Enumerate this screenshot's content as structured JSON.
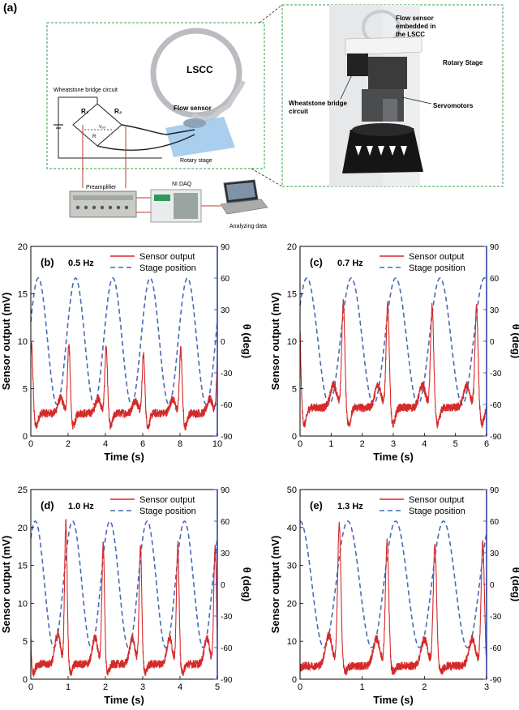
{
  "panel_a": {
    "label": "(a)",
    "wheatstone_title": "Wheatstone bridge circuit",
    "r1": "R₁",
    "r2": "R₂",
    "r": "R",
    "vout": "Vₒᵤₜ",
    "lscc": "LSCC",
    "flow_sensor": "Flow sensor",
    "rotary_stage": "Rotary stage",
    "preamplifier": "Preamplifier",
    "ni_daq": "NI DAQ",
    "analyzing": "Analyzing data",
    "photo_flow_sensor": [
      "Flow sensor",
      "embedded in",
      "the LSCC"
    ],
    "photo_rotary_stage": "Rotary Stage",
    "photo_wheatstone": [
      "Wheatstone bridge",
      "circuit"
    ],
    "photo_servomotors": "Servomotors"
  },
  "colors": {
    "sensor": "#d42a2a",
    "stage": "#4a6ab4",
    "right_axis": "#2f45a8",
    "outline": "#2fa34a"
  },
  "chart_data": [
    {
      "type": "line",
      "label": "(b)",
      "freq": "0.5 Hz",
      "xlabel": "Time (s)",
      "ylabel": "Sensor output (mV)",
      "y2label": "θ (deg)",
      "xlim": [
        0,
        10
      ],
      "ylim": [
        0,
        20
      ],
      "y2lim": [
        -90,
        90
      ],
      "xticks": [
        "0",
        "2",
        "4",
        "6",
        "8",
        "10"
      ],
      "yticks": [
        "0",
        "5",
        "10",
        "15",
        "20"
      ],
      "y2ticks": [
        "-90",
        "-60",
        "-30",
        "0",
        "30",
        "60",
        "90"
      ],
      "series": [
        {
          "name": "Sensor output"
        },
        {
          "name": "Stage position"
        }
      ],
      "stage_amplitude_deg": 60,
      "stage_phase_s": 0.4,
      "sensor_peaks_mv": [
        9.7,
        9.5,
        8.6,
        9.2,
        9.3
      ],
      "sensor_min_mv": 1.0,
      "sensor_base_mv": 2.4
    },
    {
      "type": "line",
      "label": "(c)",
      "freq": "0.7 Hz",
      "xlabel": "Time (s)",
      "ylabel": "Sensor output (mV)",
      "y2label": "θ (deg)",
      "xlim": [
        0,
        6
      ],
      "ylim": [
        0,
        20
      ],
      "y2lim": [
        -90,
        90
      ],
      "xticks": [
        "0",
        "1",
        "2",
        "3",
        "4",
        "5",
        "6"
      ],
      "yticks": [
        "0",
        "5",
        "10",
        "15",
        "20"
      ],
      "y2ticks": [
        "-90",
        "-60",
        "-30",
        "0",
        "30",
        "60",
        "90"
      ],
      "series": [
        {
          "name": "Sensor output"
        },
        {
          "name": "Stage position"
        }
      ],
      "stage_amplitude_deg": 60,
      "stage_phase_s": 0.22,
      "sensor_peaks_mv": [
        14.2,
        13.9,
        13.7,
        13.6,
        13.5,
        14.3
      ],
      "sensor_min_mv": 1.2,
      "sensor_base_mv": 3.0
    },
    {
      "type": "line",
      "label": "(d)",
      "freq": "1.0 Hz",
      "xlabel": "Time (s)",
      "ylabel": "Sensor output (mV)",
      "y2label": "θ (deg)",
      "xlim": [
        0,
        5
      ],
      "ylim": [
        0,
        25
      ],
      "y2lim": [
        -90,
        90
      ],
      "xticks": [
        "0",
        "1",
        "2",
        "3",
        "4",
        "5"
      ],
      "yticks": [
        "0",
        "5",
        "10",
        "15",
        "20",
        "25"
      ],
      "y2ticks": [
        "-90",
        "-60",
        "-30",
        "0",
        "30",
        "60",
        "90"
      ],
      "series": [
        {
          "name": "Sensor output"
        },
        {
          "name": "Stage position"
        }
      ],
      "stage_amplitude_deg": 60,
      "stage_phase_s": 0.12,
      "sensor_peaks_mv": [
        20.8,
        18.0,
        17.5,
        17.8,
        17.6,
        13.0
      ],
      "sensor_min_mv": 0.8,
      "sensor_base_mv": 2.0
    },
    {
      "type": "line",
      "label": "(e)",
      "freq": "1.3 Hz",
      "xlabel": "Time (s)",
      "ylabel": "Sensor output (mV)",
      "y2label": "θ (deg)",
      "xlim": [
        0,
        3
      ],
      "ylim": [
        0,
        50
      ],
      "y2lim": [
        -90,
        90
      ],
      "xticks": [
        "0",
        "1",
        "2",
        "3"
      ],
      "yticks": [
        "0",
        "10",
        "20",
        "30",
        "40",
        "50"
      ],
      "y2ticks": [
        "-90",
        "-60",
        "-30",
        "0",
        "30",
        "60",
        "90"
      ],
      "series": [
        {
          "name": "Sensor output"
        },
        {
          "name": "Stage position"
        }
      ],
      "stage_amplitude_deg": 60,
      "stage_phase_s": 0.0,
      "sensor_peaks_mv": [
        40.5,
        36.0,
        35.5,
        36.0
      ],
      "sensor_min_mv": 2.0,
      "sensor_base_mv": 3.5
    }
  ]
}
